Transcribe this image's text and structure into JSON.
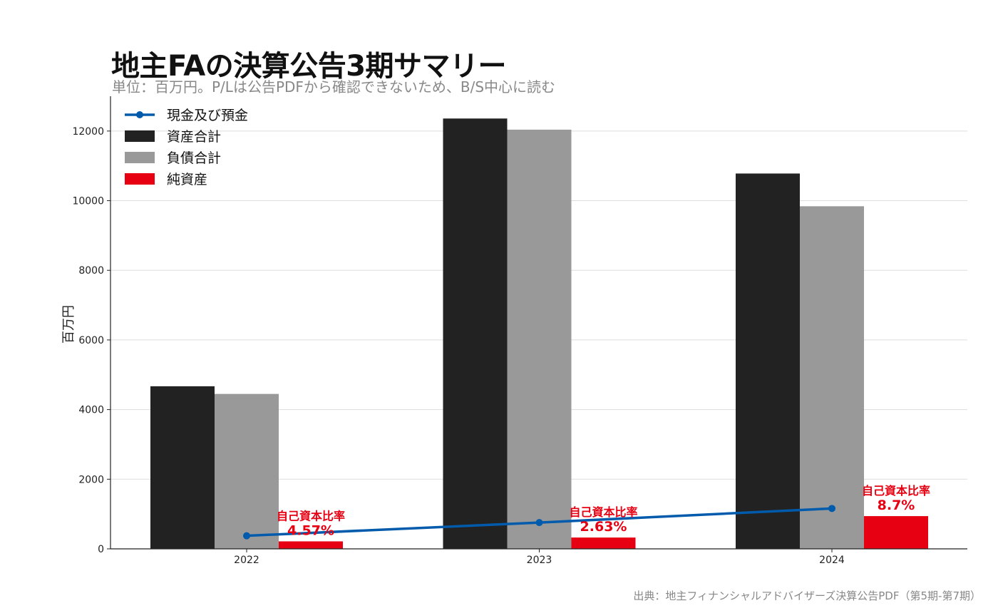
{
  "header": {
    "title": "地主FAの決算公告3期サマリー",
    "subtitle": "単位：百万円。P/Lは公告PDFから確認できないため、B/S中心に読む"
  },
  "footer": {
    "source": "出典：地主フィナンシャルアドバイザーズ決算公告PDF（第5期-第7期）"
  },
  "colors": {
    "assets": "#222222",
    "liabilities": "#999999",
    "equity": "#e60012",
    "cash": "#005bac",
    "grid": "#dddddd"
  },
  "chart_data": {
    "type": "bar",
    "title": "地主FAの決算公告3期サマリー",
    "ylabel": "百万円",
    "xlabel": "",
    "ylim": [
      0,
      13000
    ],
    "yticks": [
      0,
      2000,
      4000,
      6000,
      8000,
      10000,
      12000
    ],
    "grid": true,
    "legend_position": "top-left",
    "categories": [
      "2022",
      "2023",
      "2024"
    ],
    "series": [
      {
        "name": "資産合計",
        "kind": "bar",
        "color": "#222222",
        "values": [
          4670,
          12360,
          10780
        ]
      },
      {
        "name": "負債合計",
        "kind": "bar",
        "color": "#999999",
        "values": [
          4450,
          12040,
          9840
        ]
      },
      {
        "name": "純資産",
        "kind": "bar",
        "color": "#e60012",
        "values": [
          215,
          325,
          940
        ]
      },
      {
        "name": "現金及び預金",
        "kind": "line",
        "color": "#005bac",
        "values": [
          375,
          755,
          1160
        ]
      }
    ],
    "annotations": [
      {
        "category": "2022",
        "label": "自己資本比率",
        "value": "4.57%"
      },
      {
        "category": "2023",
        "label": "自己資本比率",
        "value": "2.63%"
      },
      {
        "category": "2024",
        "label": "自己資本比率",
        "value": "8.7%"
      }
    ]
  }
}
